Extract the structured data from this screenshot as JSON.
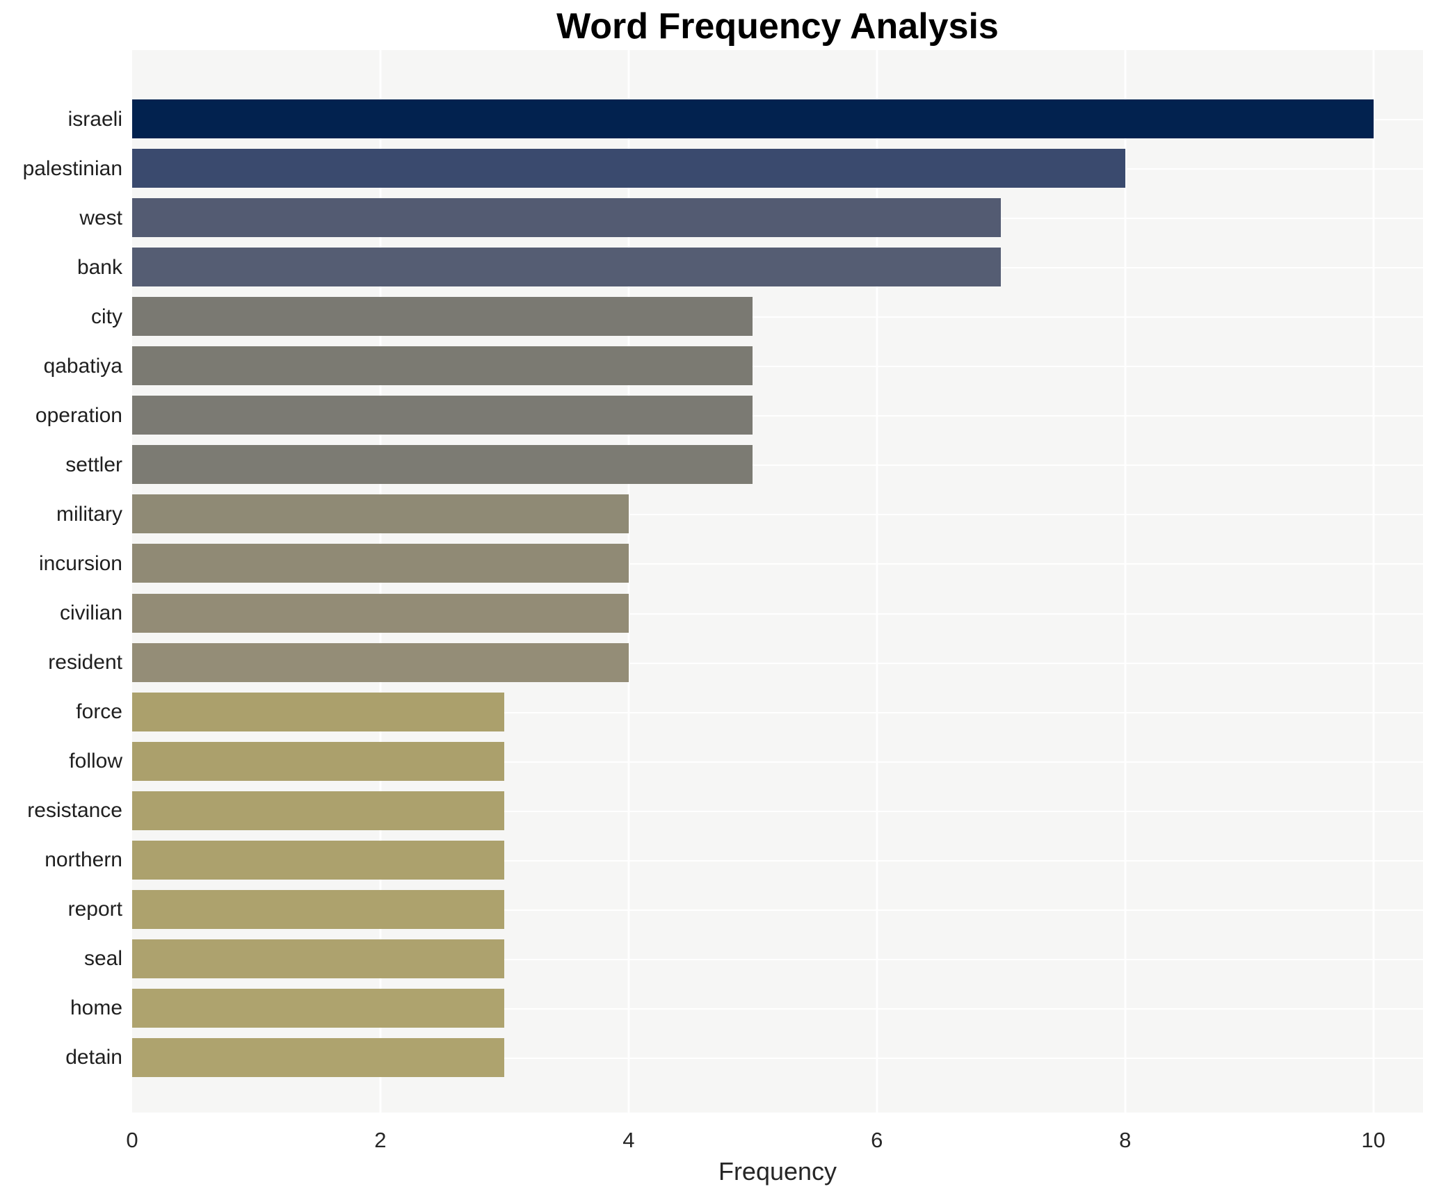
{
  "chart_data": {
    "type": "bar",
    "orientation": "horizontal",
    "title": "Word Frequency Analysis",
    "xlabel": "Frequency",
    "ylabel": "",
    "categories": [
      "israeli",
      "palestinian",
      "west",
      "bank",
      "city",
      "qabatiya",
      "operation",
      "settler",
      "military",
      "incursion",
      "civilian",
      "resident",
      "force",
      "follow",
      "resistance",
      "northern",
      "report",
      "seal",
      "home",
      "detain"
    ],
    "values": [
      10,
      8,
      7,
      7,
      5,
      5,
      5,
      5,
      4,
      4,
      4,
      4,
      3,
      3,
      3,
      3,
      3,
      3,
      3,
      3
    ],
    "bar_colors": [
      "#02224f",
      "#3a4a6e",
      "#535b72",
      "#555d73",
      "#7a7972",
      "#7b7a72",
      "#7b7a73",
      "#7c7b73",
      "#8f8a75",
      "#908a75",
      "#938c76",
      "#948d77",
      "#aba06c",
      "#aba06c",
      "#aca16d",
      "#aca16d",
      "#ada26d",
      "#ada26e",
      "#aea36e",
      "#aea36e"
    ],
    "xticks": [
      0,
      2,
      4,
      6,
      8,
      10
    ],
    "xlim": [
      0,
      10.4
    ],
    "grid": "white-on-lightgray",
    "plot_bg": "#f6f6f5",
    "figure_bg": "#ffffff",
    "legend": "none"
  }
}
